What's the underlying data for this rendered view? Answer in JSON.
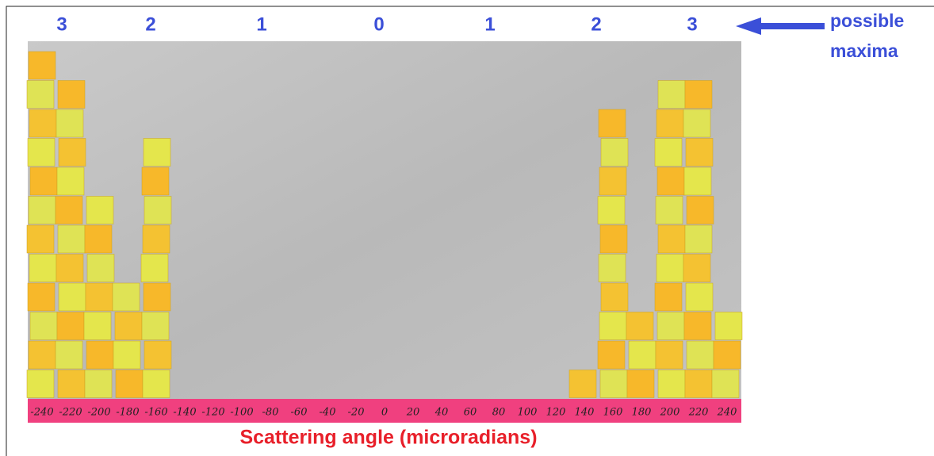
{
  "maxima_labels": [
    "3",
    "2",
    "1",
    "0",
    "1",
    "2",
    "3"
  ],
  "annotation": {
    "line1": "possible",
    "line2": "maxima"
  },
  "angle_labels": [
    "-240",
    "-220",
    "-200",
    "-180",
    "-160",
    "-140",
    "-120",
    "-100",
    "-80",
    "-60",
    "-40",
    "-20",
    "0",
    "20",
    "40",
    "60",
    "80",
    "100",
    "120",
    "140",
    "160",
    "180",
    "200",
    "220",
    "240"
  ],
  "caption": "Scattering angle (microradians)"
}
